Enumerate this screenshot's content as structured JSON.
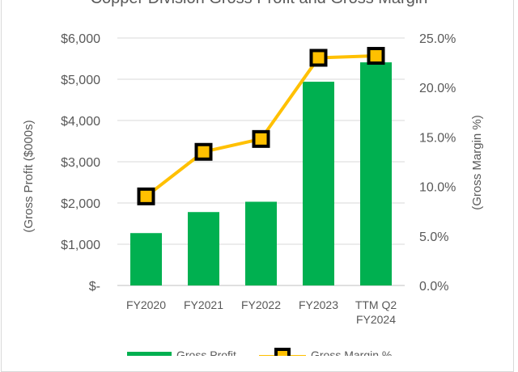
{
  "chart_data": {
    "type": "bar",
    "title": "Copper Division Gross Profit and Gross Margin",
    "categories": [
      [
        "FY2020"
      ],
      [
        "FY2021"
      ],
      [
        "FY2022"
      ],
      [
        "FY2023"
      ],
      [
        "TTM Q2",
        "FY2024"
      ]
    ],
    "series": [
      {
        "name": "Gross Profit",
        "type": "bar",
        "axis": "left",
        "values": [
          1270,
          1780,
          2030,
          4940,
          5410
        ],
        "color": "#00b050"
      },
      {
        "name": "Gross Margin %",
        "type": "line",
        "axis": "right",
        "values": [
          9.0,
          13.5,
          14.8,
          23.0,
          23.2
        ],
        "color": "#ffc000",
        "marker_color": "#000000"
      }
    ],
    "ylabel": "(Gross Profit ($000s)",
    "y2label": "(Gross Margin %)",
    "ylim": [
      0,
      6000
    ],
    "y2lim": [
      0,
      25
    ],
    "y_ticks": [
      "$-",
      "$1,000",
      "$2,000",
      "$3,000",
      "$4,000",
      "$5,000",
      "$6,000"
    ],
    "y2_ticks": [
      "0.0%",
      "5.0%",
      "10.0%",
      "15.0%",
      "20.0%",
      "25.0%"
    ],
    "grid": true,
    "legend_position": "bottom"
  }
}
